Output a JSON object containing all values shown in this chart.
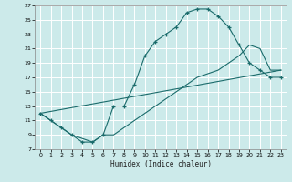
{
  "xlabel": "Humidex (Indice chaleur)",
  "xlim": [
    -0.5,
    23.5
  ],
  "ylim": [
    7,
    27
  ],
  "xticks": [
    0,
    1,
    2,
    3,
    4,
    5,
    6,
    7,
    8,
    9,
    10,
    11,
    12,
    13,
    14,
    15,
    16,
    17,
    18,
    19,
    20,
    21,
    22,
    23
  ],
  "yticks": [
    7,
    9,
    11,
    13,
    15,
    17,
    19,
    21,
    23,
    25,
    27
  ],
  "bg_color": "#cceaea",
  "line_color": "#1a6b6b",
  "grid_color": "#ffffff",
  "line1_x": [
    0,
    1,
    2,
    3,
    4,
    5,
    6,
    7,
    8,
    9,
    10,
    11,
    12,
    13,
    14,
    15,
    16,
    17,
    18,
    19,
    20,
    21,
    22,
    23
  ],
  "line1_y": [
    12,
    11,
    10,
    9,
    8,
    8,
    9,
    13,
    13,
    16,
    20,
    22,
    23,
    24,
    26,
    26.5,
    26.5,
    25.5,
    24,
    21.5,
    19,
    18,
    17,
    17
  ],
  "line2_x": [
    0,
    1,
    2,
    3,
    4,
    5,
    6,
    7,
    8,
    9,
    10,
    11,
    12,
    13,
    14,
    15,
    16,
    17,
    18,
    19,
    20,
    21,
    22,
    23
  ],
  "line2_y": [
    12,
    11,
    10,
    9,
    8.5,
    8,
    9,
    9,
    10,
    11,
    12,
    13,
    14,
    15,
    16,
    17,
    17.5,
    18,
    19,
    20,
    21.5,
    21,
    18,
    18
  ],
  "line3_x": [
    0,
    23
  ],
  "line3_y": [
    12,
    18
  ]
}
